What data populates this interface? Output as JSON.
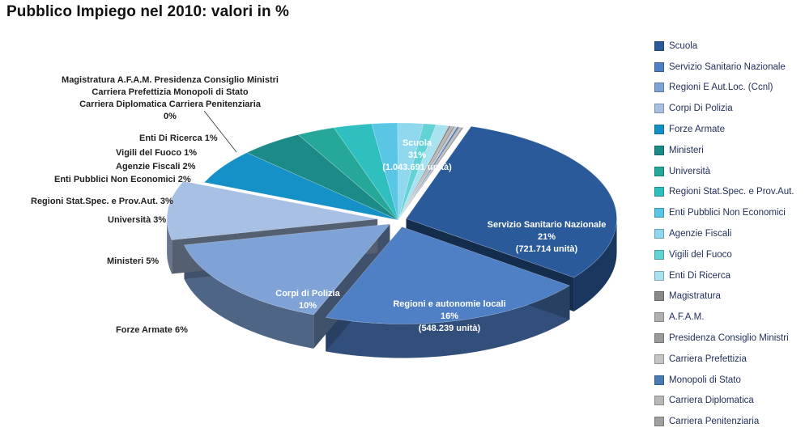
{
  "chart_data": {
    "type": "pie",
    "title": "Pubblico Impiego nel 2010: valori in %",
    "slices": [
      {
        "name": "Scuola",
        "value": 31,
        "color": "#2a5a9a"
      },
      {
        "name": "Servizio Sanitario Nazionale",
        "value": 21,
        "color": "#4f7fc4"
      },
      {
        "name": "Regioni E Aut.Loc. (Ccnl)",
        "value": 16,
        "color": "#7fa3d6"
      },
      {
        "name": "Corpi Di Polizia",
        "value": 10,
        "color": "#a7c0e3"
      },
      {
        "name": "Forze Armate",
        "value": 6,
        "color": "#1691c7"
      },
      {
        "name": "Ministeri",
        "value": 5,
        "color": "#1c8a86"
      },
      {
        "name": "Università",
        "value": 3,
        "color": "#25a89a"
      },
      {
        "name": "Regioni Stat.Spec. e Prov.Aut.",
        "value": 3,
        "color": "#30bfbf"
      },
      {
        "name": "Enti Pubblici Non Economici",
        "value": 2,
        "color": "#59c6e6"
      },
      {
        "name": "Agenzie Fiscali",
        "value": 2,
        "color": "#8fd8ee"
      },
      {
        "name": "Vigili del Fuoco",
        "value": 1,
        "color": "#63d2d4"
      },
      {
        "name": "Enti Di Ricerca",
        "value": 1,
        "color": "#a9e2ef"
      },
      {
        "name": "Magistratura",
        "value": 0,
        "color": "#8a8a8a"
      },
      {
        "name": "A.F.A.M.",
        "value": 0,
        "color": "#b0b0b0"
      },
      {
        "name": "Presidenza Consiglio Ministri",
        "value": 0,
        "color": "#9a9a9a"
      },
      {
        "name": "Carriera Prefettizia",
        "value": 0,
        "color": "#c4c4c4"
      },
      {
        "name": "Monopoli di Stato",
        "value": 0,
        "color": "#4a7bb5"
      },
      {
        "name": "Carriera Diplomatica",
        "value": 0,
        "color": "#b8b8b8"
      },
      {
        "name": "Carriera Penitenziaria",
        "value": 0,
        "color": "#a0a0a0"
      }
    ],
    "inside_labels": {
      "scuola": [
        "Scuola",
        "31%",
        "(1.043.691 unità)"
      ],
      "ssn": [
        "Servizio Sanitario Nazionale",
        "21%",
        "(721.714 unità)"
      ],
      "regioni": [
        "Regioni e autonomie locali",
        "16%",
        "(548.239 unità)"
      ],
      "polizia": [
        "Corpi di Polizia",
        "10%"
      ]
    },
    "outside_labels": {
      "small_group": [
        "Magistratura A.F.A.M. Presidenza Consiglio Ministri",
        "Carriera Prefettizia Monopoli di Stato",
        "Carriera Diplomatica  Carriera Penitenziaria",
        "0%"
      ],
      "enti_ricerca": "Enti Di Ricerca 1%",
      "vigili": "Vigili del Fuoco  1%",
      "agenzie": "Agenzie Fiscali 2%",
      "enti_pubblici": "Enti Pubblici Non Economici 2%",
      "regioni_stat": "Regioni Stat.Spec. e Prov.Aut. 3%",
      "universita": "Università 3%",
      "ministeri": "Ministeri  5%",
      "forze_armate": "Forze Armate 6%"
    },
    "legend_position": "right"
  }
}
